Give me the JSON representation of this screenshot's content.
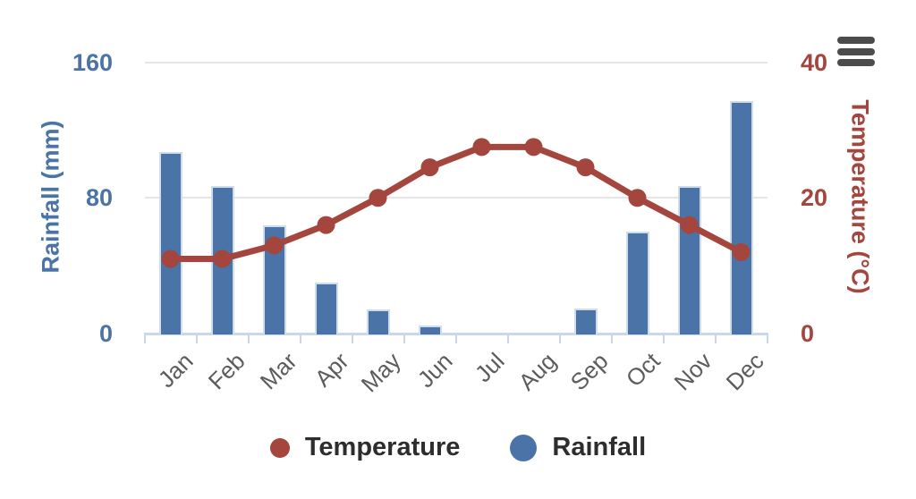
{
  "chart": {
    "background_color": "#ffffff",
    "context_menu_icon": "hamburger-icon",
    "context_menu_color": "#4c4c4c"
  },
  "legend": {
    "position": "bottom-center",
    "text_color": "#2d2d2d",
    "items": [
      {
        "label": "Temperature",
        "color": "#a4453e",
        "marker": "circle-small"
      },
      {
        "label": "Rainfall",
        "color": "#4a74a8",
        "marker": "circle-large"
      }
    ]
  },
  "chart_data": {
    "type": "combo",
    "categories": [
      "Jan",
      "Feb",
      "Mar",
      "Apr",
      "May",
      "Jun",
      "Jul",
      "Aug",
      "Sep",
      "Oct",
      "Nov",
      "Dec"
    ],
    "series": [
      {
        "name": "Rainfall",
        "type": "bar",
        "axis": "left",
        "color": "#4a74a8",
        "values": [
          107,
          87,
          64,
          30,
          14,
          5,
          0,
          0,
          15,
          60,
          87,
          137
        ]
      },
      {
        "name": "Temperature",
        "type": "line",
        "axis": "right",
        "color": "#a4453e",
        "values": [
          11,
          11,
          13,
          16,
          20,
          24.5,
          27.5,
          27.5,
          24.5,
          20,
          16,
          12
        ]
      }
    ],
    "axes": {
      "x": {
        "label_rotation": -45,
        "label_color": "#5c5c5c",
        "line_color": "#ccd6eb"
      },
      "left": {
        "title": "Rainfall (mm)",
        "ticks": [
          0,
          80,
          160
        ],
        "min": 0,
        "max": 160,
        "color": "#4a74a8"
      },
      "right": {
        "title": "Temperature (°C)",
        "ticks": [
          0,
          20,
          40
        ],
        "min": 0,
        "max": 40,
        "color": "#a4453e"
      }
    },
    "grid": true,
    "gridline_color": "#e6e6e6",
    "legend_position": "bottom",
    "title": ""
  }
}
